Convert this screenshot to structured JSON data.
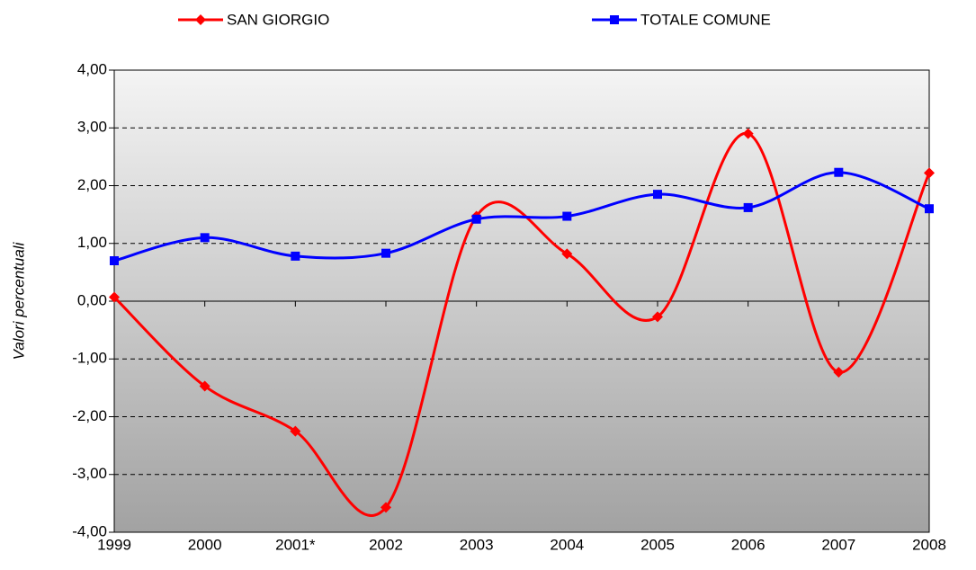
{
  "chart_data": {
    "type": "line",
    "y_label": "Valori percentuali",
    "categories": [
      "1999",
      "2000",
      "2001*",
      "2002",
      "2003",
      "2004",
      "2005",
      "2006",
      "2007",
      "2008"
    ],
    "series": [
      {
        "name": "SAN GIORGIO",
        "color": "#ff0000",
        "marker": "diamond",
        "values": [
          0.07,
          -1.47,
          -2.25,
          -3.57,
          1.47,
          0.82,
          -0.27,
          2.9,
          -1.23,
          2.22
        ]
      },
      {
        "name": "TOTALE COMUNE",
        "color": "#0000ff",
        "marker": "square",
        "values": [
          0.7,
          1.1,
          0.78,
          0.83,
          1.42,
          1.47,
          1.85,
          1.62,
          2.23,
          1.6
        ]
      }
    ],
    "ylim": [
      -4,
      4
    ],
    "yticks": [
      {
        "value": -4,
        "label": "-4,00"
      },
      {
        "value": -3,
        "label": "-3,00"
      },
      {
        "value": -2,
        "label": "-2,00"
      },
      {
        "value": -1,
        "label": "-1,00"
      },
      {
        "value": 0,
        "label": "0,00"
      },
      {
        "value": 1,
        "label": "1,00"
      },
      {
        "value": 2,
        "label": "2,00"
      },
      {
        "value": 3,
        "label": "3,00"
      },
      {
        "value": 4,
        "label": "4,00"
      }
    ],
    "grid": true,
    "smooth": true,
    "legend": "top"
  }
}
